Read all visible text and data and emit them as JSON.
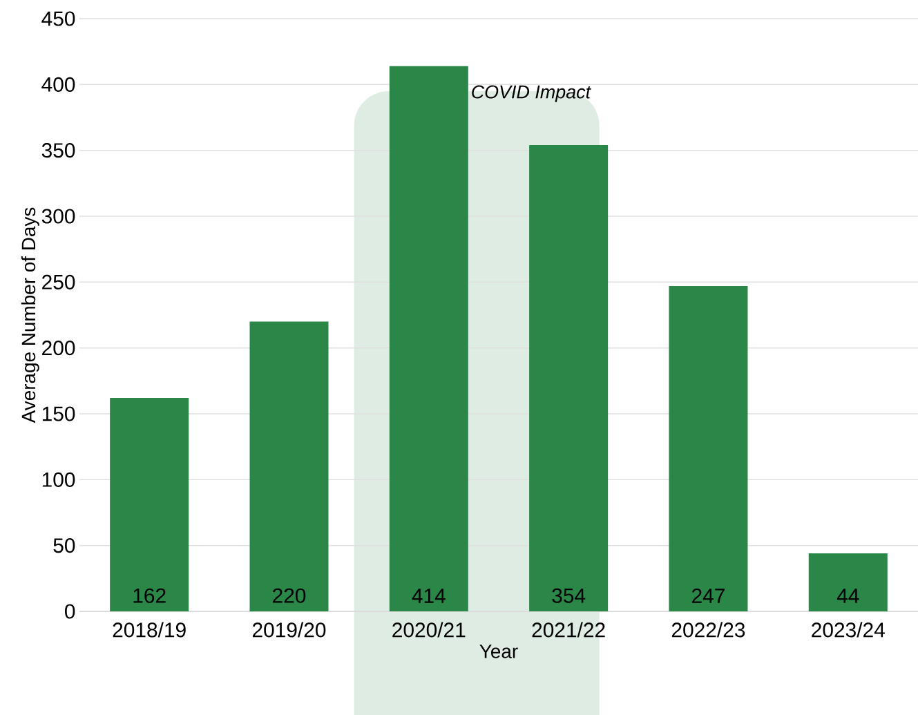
{
  "chart_data": {
    "type": "bar",
    "xlabel": "Year",
    "ylabel": "Average Number of Days",
    "categories": [
      "2018/19",
      "2019/20",
      "2020/21",
      "2021/22",
      "2022/23",
      "2023/24"
    ],
    "values": [
      162,
      220,
      414,
      354,
      247,
      44
    ],
    "color": "#2a8748",
    "data_labels": true,
    "ylim": [
      0,
      450
    ],
    "yticks": [
      0,
      50,
      100,
      150,
      200,
      250,
      300,
      350,
      400,
      450
    ],
    "grid": "y",
    "bands": [
      {
        "axis": "x",
        "from": "2020/21",
        "to": "2021/22",
        "color": "#dfece3"
      }
    ],
    "annotations": [
      "COVID Impact"
    ]
  }
}
